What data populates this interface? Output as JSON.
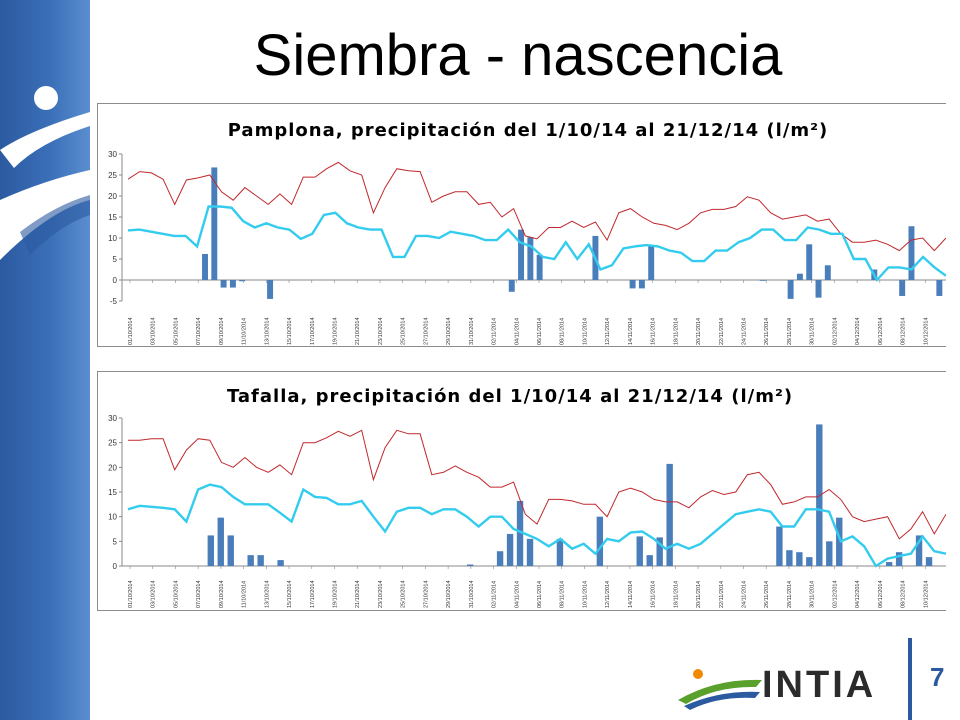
{
  "slide": {
    "title": "Siembra - nascencia",
    "page_number": "7",
    "logo_text": "INTIA",
    "colors": {
      "band": "#2c5aa0",
      "bars": "#4a7ebb",
      "temp_max": "#c0282d",
      "temp_min": "#33ccee",
      "logo_green": "#5aa02c",
      "logo_orange": "#f08a00"
    },
    "icons": [
      "brand-swoosh-icon",
      "intia-logo-icon"
    ]
  },
  "chart_data": [
    {
      "type": "bar",
      "title": "Pamplona, precipitación del 1/10/14 al 21/12/14 (l/m²)",
      "ylim": [
        -5,
        30
      ],
      "yticks": [
        "30",
        "25",
        "20",
        "15",
        "10",
        "5",
        "0",
        "-5"
      ],
      "x_tick_labels": [
        "01/10/2014",
        "03/10/2014",
        "05/10/2014",
        "07/10/2014",
        "09/10/2014",
        "11/10/2014",
        "13/10/2014",
        "15/10/2014",
        "17/10/2014",
        "19/10/2014",
        "21/10/2014",
        "23/10/2014",
        "25/10/2014",
        "27/10/2014",
        "29/10/2014",
        "31/10/2014",
        "02/11/2014",
        "04/11/2014",
        "06/11/2014",
        "08/11/2014",
        "10/11/2014",
        "12/11/2014",
        "14/11/2014",
        "16/11/2014",
        "18/11/2014",
        "20/11/2014",
        "22/11/2014",
        "24/11/2014",
        "26/11/2014",
        "28/11/2014",
        "30/11/2014",
        "02/12/2014",
        "04/12/2014",
        "06/12/2014",
        "08/12/2014",
        "10/12/2014"
      ],
      "grid": false,
      "series": [
        {
          "kind": "bar",
          "values": [
            0,
            0,
            0,
            0,
            0,
            0,
            0,
            0,
            6.2,
            26.8,
            -1.8,
            -1.8,
            -0.3,
            0,
            0,
            -4.5,
            0,
            0,
            0,
            0,
            0,
            0,
            0,
            0,
            0,
            0,
            0,
            0,
            0,
            0,
            0,
            0,
            0,
            0,
            0,
            0,
            0,
            0,
            0,
            0,
            0,
            -2.8,
            12,
            10.2,
            6,
            0,
            0,
            0,
            0,
            0,
            10.5,
            0,
            0,
            0,
            -2,
            -2,
            8,
            0,
            0,
            0,
            0,
            0,
            0,
            0,
            0,
            0,
            0,
            0,
            -0.2,
            0,
            0,
            -4.5,
            1.5,
            8.5,
            -4.2,
            3.5,
            0,
            0,
            0,
            0,
            2.5,
            0,
            0,
            -3.8,
            12.8,
            0,
            0,
            -3.8
          ]
        },
        {
          "kind": "line",
          "values": [
            24,
            25.8,
            25.5,
            24,
            18,
            23.8,
            24.3,
            25,
            21,
            19,
            22,
            20,
            18,
            20.5,
            18,
            24.5,
            24.5,
            26.5,
            28,
            26,
            25,
            16,
            22,
            26.5,
            26,
            25.8,
            18.5,
            20,
            21,
            21,
            18,
            18.5,
            15,
            17,
            10.5,
            9.8,
            12.5,
            12.5,
            14,
            12.5,
            13.8,
            9.5,
            16,
            17,
            15,
            13.5,
            13,
            12,
            13.5,
            16,
            16.8,
            16.8,
            17.5,
            19.8,
            19,
            16,
            14.5,
            15,
            15.5,
            14,
            14.5,
            11,
            9,
            9,
            9.5,
            8.5,
            7,
            9.5,
            10,
            7,
            10
          ]
        },
        {
          "kind": "line",
          "values": [
            11.8,
            12,
            11.5,
            11,
            10.5,
            10.5,
            8,
            17.5,
            17.5,
            17.2,
            14,
            12.5,
            13.5,
            12.5,
            12,
            9.8,
            11,
            15.5,
            16,
            13.5,
            12.5,
            12,
            12,
            5.5,
            5.5,
            10.5,
            10.5,
            10,
            11.5,
            11,
            10.5,
            9.5,
            9.5,
            12,
            9,
            8,
            5.5,
            5,
            9,
            5,
            8.5,
            2.5,
            3.5,
            7.5,
            8,
            8.3,
            8,
            7,
            6.5,
            4.5,
            4.5,
            7,
            7,
            9,
            10,
            12,
            12,
            9.5,
            9.5,
            12.5,
            12,
            11,
            11,
            5,
            5,
            0,
            3,
            3,
            2.5,
            5.5,
            3,
            1
          ]
        }
      ]
    },
    {
      "type": "bar",
      "title": "Tafalla, precipitación del 1/10/14 al 21/12/14 (l/m²)",
      "ylim": [
        0,
        30
      ],
      "yticks": [
        "30",
        "25",
        "20",
        "15",
        "10",
        "5",
        "0"
      ],
      "x_tick_labels": [
        "01/10/2014",
        "03/10/2014",
        "05/10/2014",
        "07/10/2014",
        "09/10/2014",
        "11/10/2014",
        "13/10/2014",
        "15/10/2014",
        "17/10/2014",
        "19/10/2014",
        "21/10/2014",
        "23/10/2014",
        "25/10/2014",
        "27/10/2014",
        "29/10/2014",
        "31/10/2014",
        "02/11/2014",
        "04/11/2014",
        "06/11/2014",
        "08/11/2014",
        "10/11/2014",
        "12/11/2014",
        "14/11/2014",
        "16/11/2014",
        "18/11/2014",
        "20/11/2014",
        "22/11/2014",
        "24/11/2014",
        "26/11/2014",
        "28/11/2014",
        "30/11/2014",
        "02/12/2014",
        "04/12/2014",
        "06/12/2014",
        "08/12/2014",
        "10/12/2014"
      ],
      "grid": false,
      "series": [
        {
          "kind": "bar",
          "values": [
            0,
            0,
            0,
            0,
            0,
            0,
            0,
            0,
            6.2,
            9.8,
            6.2,
            0,
            2.2,
            2.2,
            0,
            1.2,
            0,
            0,
            0,
            0,
            0,
            0,
            0,
            0,
            0,
            0,
            0,
            0,
            0,
            0,
            0,
            0,
            0,
            0,
            0.3,
            0,
            0,
            3,
            6.5,
            13.2,
            5.5,
            0,
            0,
            5.5,
            0,
            0,
            0,
            10,
            0,
            0,
            0,
            6,
            2.2,
            5.8,
            20.7,
            0,
            0,
            0,
            0,
            0,
            0,
            0,
            0,
            0,
            0,
            8,
            3.2,
            2.8,
            1.8,
            28.7,
            5,
            9.8,
            0,
            0,
            0,
            0,
            0.8,
            2.8,
            0,
            6.2,
            1.8,
            0
          ]
        },
        {
          "kind": "line",
          "values": [
            25.5,
            25.5,
            25.8,
            25.8,
            19.5,
            23.5,
            25.8,
            25.5,
            21,
            20,
            22,
            20,
            19,
            20.5,
            18.5,
            25,
            25,
            26,
            27.3,
            26.3,
            27.5,
            17.5,
            24,
            27.5,
            26.8,
            26.8,
            18.5,
            19,
            20.3,
            19,
            18,
            16,
            16,
            17,
            10.5,
            8.5,
            13.5,
            13.5,
            13.2,
            12.5,
            12.5,
            10,
            15,
            15.8,
            15,
            13.5,
            13,
            13,
            11.8,
            14,
            15.3,
            14.5,
            15,
            18.5,
            19,
            16.5,
            12.5,
            13,
            14,
            14,
            15.5,
            13.5,
            10,
            9,
            9.5,
            10,
            5.5,
            7.5,
            11,
            6.5,
            10.5
          ]
        },
        {
          "kind": "line",
          "values": [
            11.5,
            12.2,
            12,
            11.8,
            11.5,
            9,
            15.5,
            16.5,
            16,
            14,
            12.5,
            12.5,
            12.5,
            10.8,
            9,
            15.5,
            14,
            13.8,
            12.5,
            12.5,
            13.2,
            10,
            7,
            11,
            11.8,
            11.8,
            10.5,
            11.5,
            11.5,
            10,
            8,
            10,
            10,
            7.5,
            6.5,
            5.5,
            4,
            5.5,
            3.5,
            4.5,
            2.5,
            5.5,
            5,
            6.8,
            7,
            5.5,
            3.5,
            4.5,
            3.5,
            4.5,
            6.5,
            8.5,
            10.5,
            11,
            11.5,
            11,
            8,
            8,
            11.5,
            11.5,
            11,
            5,
            6,
            4,
            0,
            1.5,
            2,
            2.5,
            6,
            3,
            2.5
          ]
        }
      ]
    }
  ]
}
